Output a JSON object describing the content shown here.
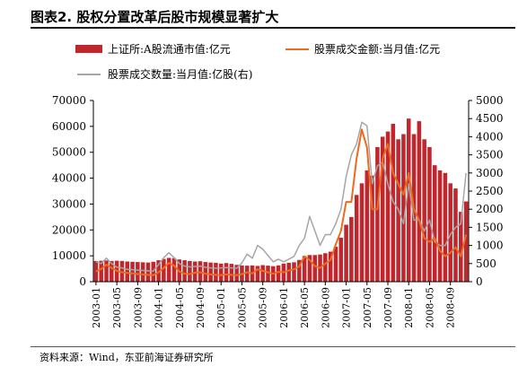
{
  "figure": {
    "title": "图表2.   股权分置改革后股市规模显著扩大",
    "source": "资料来源：Wind，东亚前海证券研究所"
  },
  "chart_data": {
    "type": "bar+line",
    "title": "",
    "legend_placement": "top",
    "grid": false,
    "x": [
      "2003-01",
      "2003-02",
      "2003-03",
      "2003-04",
      "2003-05",
      "2003-06",
      "2003-07",
      "2003-08",
      "2003-09",
      "2003-10",
      "2003-11",
      "2003-12",
      "2004-01",
      "2004-02",
      "2004-03",
      "2004-04",
      "2004-05",
      "2004-06",
      "2004-07",
      "2004-08",
      "2004-09",
      "2004-10",
      "2004-11",
      "2004-12",
      "2005-01",
      "2005-02",
      "2005-03",
      "2005-04",
      "2005-05",
      "2005-06",
      "2005-07",
      "2005-08",
      "2005-09",
      "2005-10",
      "2005-11",
      "2005-12",
      "2006-01",
      "2006-02",
      "2006-03",
      "2006-04",
      "2006-05",
      "2006-06",
      "2006-07",
      "2006-08",
      "2006-09",
      "2006-10",
      "2006-11",
      "2006-12",
      "2007-01",
      "2007-02",
      "2007-03",
      "2007-04",
      "2007-05",
      "2007-06",
      "2007-07",
      "2007-08",
      "2007-09",
      "2007-10",
      "2007-11",
      "2007-12",
      "2008-01",
      "2008-02",
      "2008-03",
      "2008-04",
      "2008-05",
      "2008-06",
      "2008-07",
      "2008-08",
      "2008-09",
      "2008-10",
      "2008-11",
      "2008-12"
    ],
    "x_tick_labels": [
      "2003-01",
      "2003-05",
      "2003-09",
      "2004-01",
      "2004-05",
      "2004-09",
      "2005-01",
      "2005-05",
      "2005-09",
      "2006-01",
      "2006-05",
      "2006-09",
      "2007-01",
      "2007-05",
      "2007-09",
      "2008-01",
      "2008-05",
      "2008-09"
    ],
    "left_axis": {
      "ylim": [
        0,
        70000
      ],
      "ticks": [
        0,
        10000,
        20000,
        30000,
        40000,
        50000,
        60000,
        70000
      ]
    },
    "right_axis": {
      "ylim": [
        0,
        5000
      ],
      "ticks": [
        0,
        500,
        1000,
        1500,
        2000,
        2500,
        3000,
        3500,
        4000,
        4500,
        5000
      ]
    },
    "series": [
      {
        "name": "上证所:A股流通市值:亿元",
        "kind": "bar",
        "axis": "left",
        "color": "#c0272d",
        "values": [
          8000,
          8100,
          8200,
          8000,
          8100,
          8000,
          7800,
          7700,
          7600,
          7500,
          7400,
          7700,
          8300,
          8800,
          9200,
          9100,
          8600,
          8300,
          8000,
          7800,
          7900,
          7600,
          7400,
          7300,
          7000,
          7200,
          6900,
          6500,
          6300,
          6200,
          6300,
          6100,
          6400,
          6200,
          6000,
          6300,
          7000,
          7300,
          7500,
          8400,
          9900,
          10300,
          10300,
          10500,
          11000,
          11600,
          13500,
          17000,
          22000,
          25000,
          33500,
          38000,
          43000,
          41000,
          52000,
          56000,
          58000,
          61000,
          55000,
          57000,
          63000,
          57000,
          62000,
          55000,
          52000,
          45000,
          43000,
          42000,
          38000,
          36000,
          27000,
          31000
        ]
      },
      {
        "name": "股票成交金额:当月值:亿元",
        "kind": "line",
        "axis": "right",
        "color": "#ee6a1e",
        "values": [
          280,
          350,
          470,
          380,
          300,
          260,
          240,
          230,
          210,
          200,
          190,
          180,
          260,
          380,
          520,
          440,
          280,
          220,
          210,
          250,
          260,
          220,
          200,
          190,
          180,
          200,
          190,
          180,
          210,
          260,
          230,
          340,
          300,
          260,
          220,
          270,
          260,
          310,
          340,
          420,
          700,
          600,
          430,
          380,
          500,
          600,
          1030,
          1400,
          2200,
          2200,
          3400,
          4200,
          3700,
          2000,
          2000,
          3400,
          3800,
          3000,
          2700,
          2400,
          3000,
          2000,
          1700,
          1200,
          1100,
          1200,
          850,
          700,
          800,
          950,
          700,
          1300
        ]
      },
      {
        "name": "股票成交数量:当月值:亿股(右)",
        "kind": "line",
        "axis": "right",
        "color": "#a6a6a6",
        "values": [
          550,
          500,
          650,
          500,
          400,
          380,
          340,
          330,
          320,
          310,
          300,
          290,
          470,
          660,
          800,
          660,
          500,
          430,
          410,
          420,
          430,
          400,
          380,
          370,
          380,
          390,
          380,
          370,
          520,
          760,
          650,
          1000,
          900,
          720,
          550,
          620,
          550,
          620,
          700,
          1000,
          1200,
          1800,
          1400,
          1000,
          1300,
          1300,
          1600,
          2000,
          2900,
          3500,
          3800,
          4400,
          4300,
          2700,
          3200,
          3300,
          2700,
          2200,
          2000,
          1600,
          2700,
          1700,
          1700,
          1400,
          1700,
          1100,
          1000,
          1000,
          1300,
          1500,
          1600,
          3000
        ]
      }
    ]
  }
}
